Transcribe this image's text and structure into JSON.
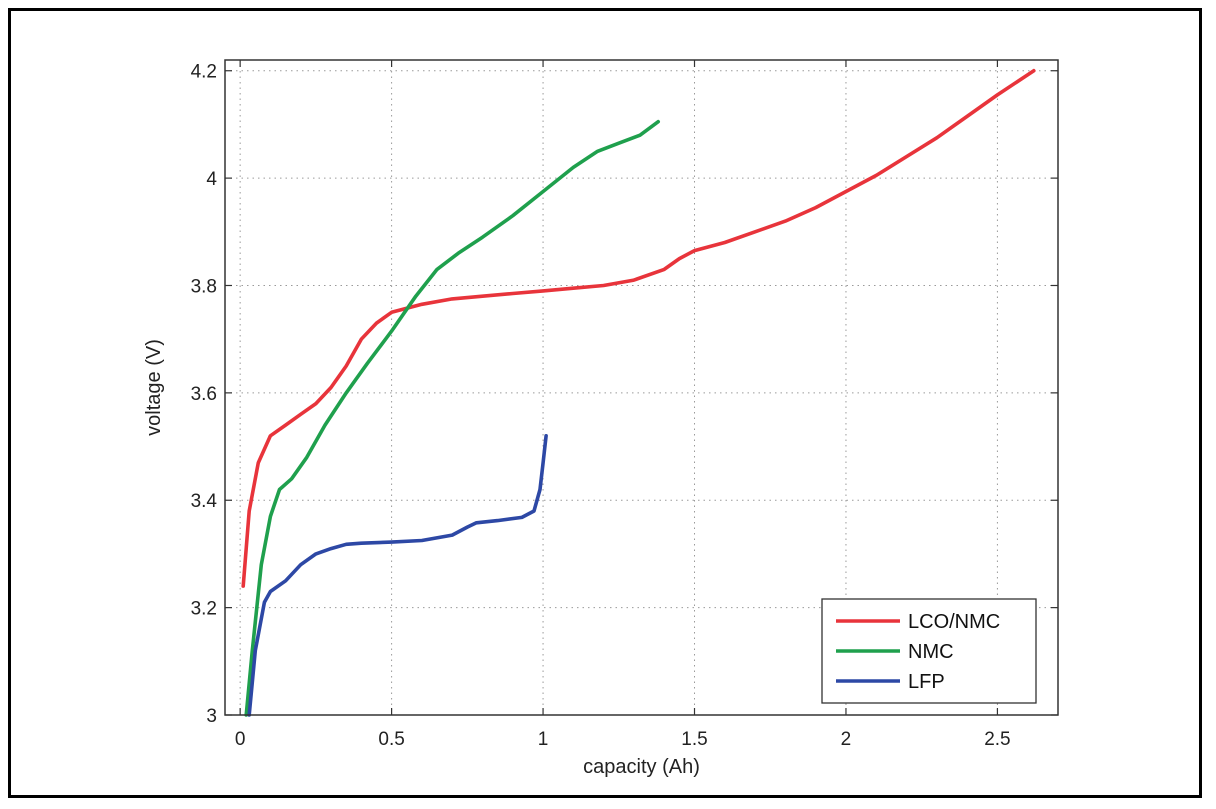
{
  "chart_data": {
    "type": "line",
    "xlabel": "capacity (Ah)",
    "ylabel": "voltage (V)",
    "xlim": [
      -0.05,
      2.7
    ],
    "ylim": [
      3.0,
      4.22
    ],
    "x_ticks": [
      0,
      0.5,
      1,
      1.5,
      2,
      2.5
    ],
    "x_tick_labels": [
      "0",
      "0.5",
      "1",
      "1.5",
      "2",
      "2.5"
    ],
    "y_ticks": [
      3.0,
      3.2,
      3.4,
      3.6,
      3.8,
      4.0,
      4.2
    ],
    "y_tick_labels": [
      "3",
      "3.2",
      "3.4",
      "3.6",
      "3.8",
      "4",
      "4.2"
    ],
    "grid": true,
    "legend_position": "bottom-right",
    "series": [
      {
        "name": "LCO/NMC",
        "color": "#e8343b",
        "x": [
          0.01,
          0.03,
          0.06,
          0.1,
          0.15,
          0.2,
          0.25,
          0.3,
          0.35,
          0.4,
          0.45,
          0.5,
          0.6,
          0.7,
          0.8,
          0.9,
          1.0,
          1.1,
          1.2,
          1.3,
          1.4,
          1.45,
          1.5,
          1.6,
          1.7,
          1.8,
          1.9,
          2.0,
          2.1,
          2.2,
          2.3,
          2.4,
          2.5,
          2.62
        ],
        "y": [
          3.24,
          3.38,
          3.47,
          3.52,
          3.54,
          3.56,
          3.58,
          3.61,
          3.65,
          3.7,
          3.73,
          3.75,
          3.765,
          3.775,
          3.78,
          3.785,
          3.79,
          3.795,
          3.8,
          3.81,
          3.83,
          3.85,
          3.865,
          3.88,
          3.9,
          3.92,
          3.945,
          3.975,
          4.005,
          4.04,
          4.075,
          4.115,
          4.155,
          4.2
        ]
      },
      {
        "name": "NMC",
        "color": "#1fa04d",
        "x": [
          0.02,
          0.04,
          0.07,
          0.1,
          0.13,
          0.17,
          0.22,
          0.28,
          0.35,
          0.42,
          0.5,
          0.58,
          0.65,
          0.72,
          0.8,
          0.9,
          1.0,
          1.1,
          1.18,
          1.25,
          1.32,
          1.38
        ],
        "y": [
          3.0,
          3.12,
          3.28,
          3.37,
          3.42,
          3.44,
          3.48,
          3.54,
          3.6,
          3.655,
          3.715,
          3.78,
          3.83,
          3.86,
          3.89,
          3.93,
          3.975,
          4.02,
          4.05,
          4.065,
          4.08,
          4.105
        ]
      },
      {
        "name": "LFP",
        "color": "#2d48a5",
        "x": [
          0.03,
          0.05,
          0.08,
          0.1,
          0.15,
          0.2,
          0.25,
          0.3,
          0.35,
          0.4,
          0.5,
          0.6,
          0.7,
          0.75,
          0.78,
          0.85,
          0.93,
          0.97,
          0.99,
          1.0,
          1.01
        ],
        "y": [
          3.0,
          3.12,
          3.21,
          3.23,
          3.25,
          3.28,
          3.3,
          3.31,
          3.318,
          3.32,
          3.322,
          3.325,
          3.335,
          3.35,
          3.358,
          3.362,
          3.368,
          3.38,
          3.42,
          3.47,
          3.52
        ]
      }
    ]
  }
}
